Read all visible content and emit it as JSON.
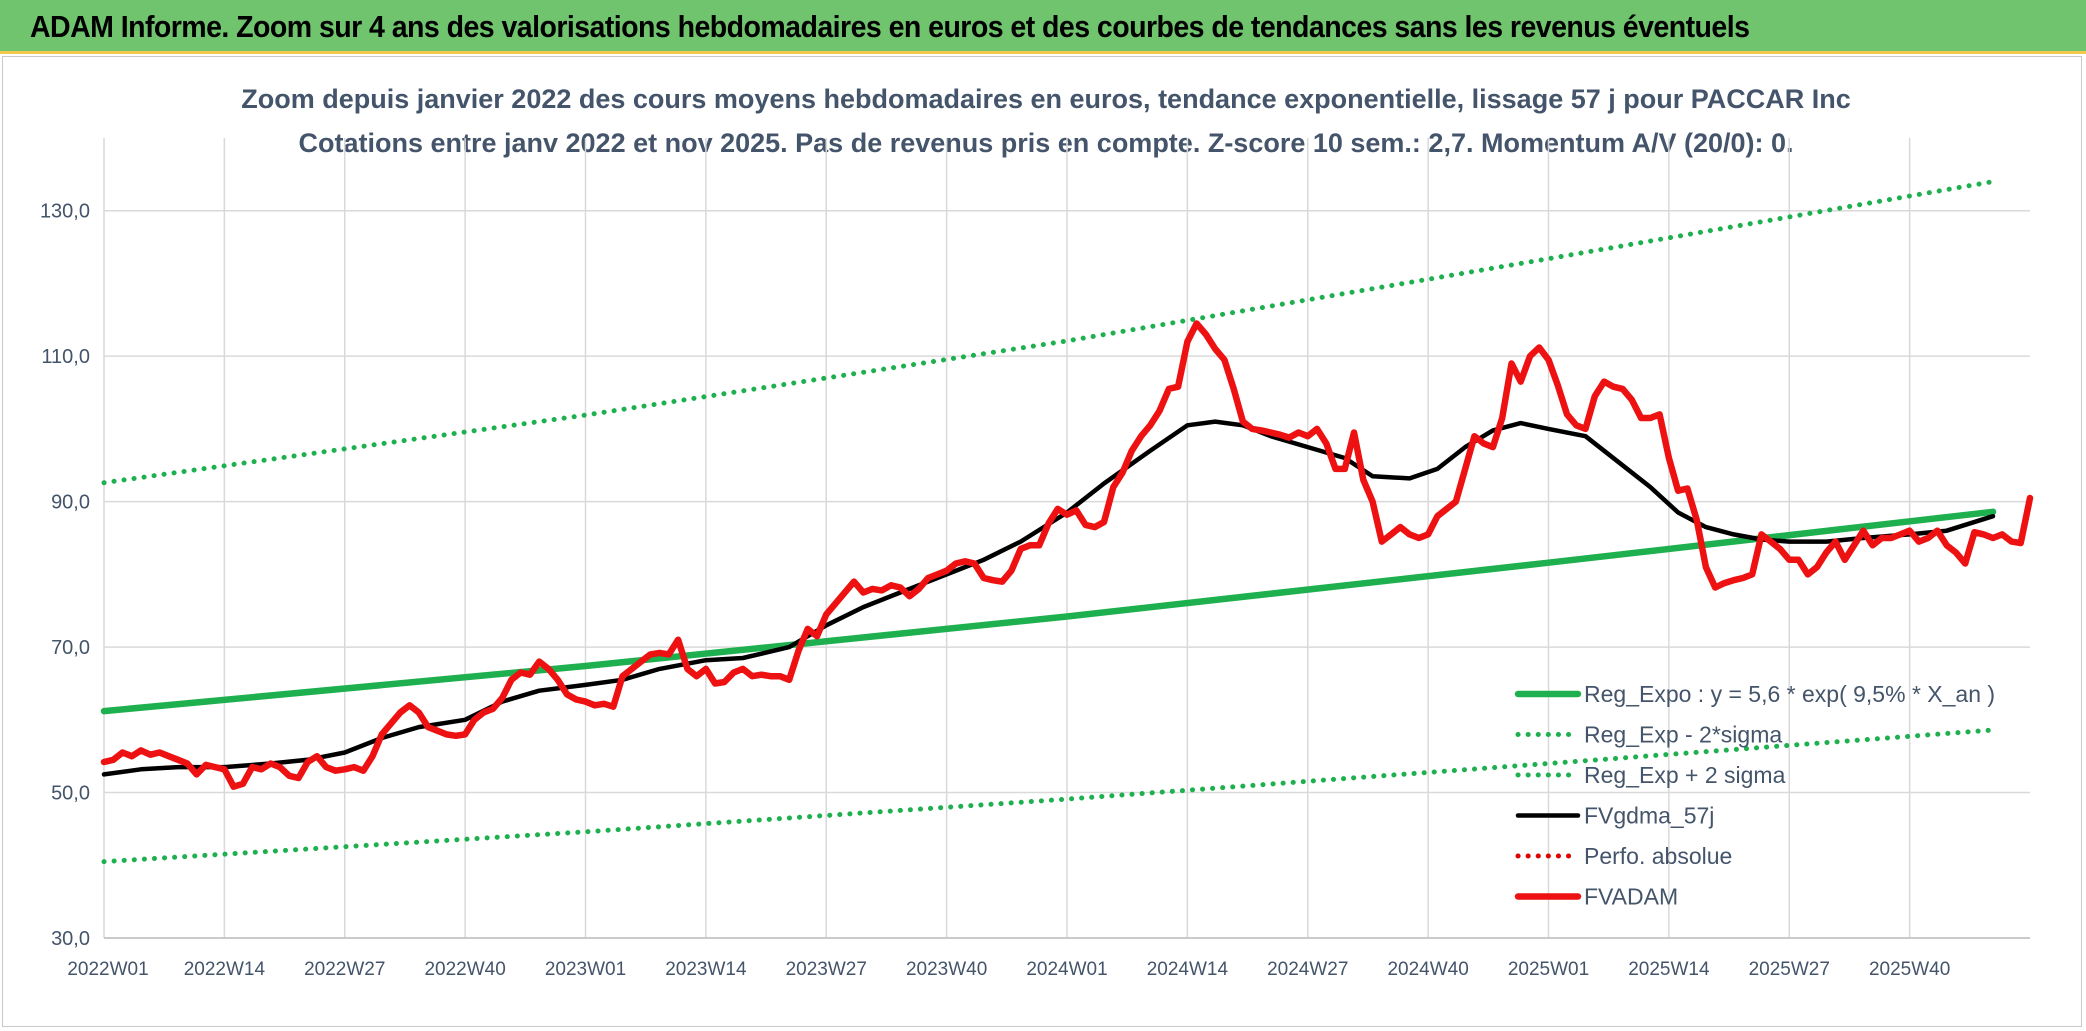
{
  "header": {
    "title": "ADAM Informe. Zoom sur 4 ans des valorisations hebdomadaires en euros et des courbes de tendances sans les revenus éventuels"
  },
  "chart_data": {
    "type": "line",
    "title": "Zoom depuis janvier 2022 des cours moyens hebdomadaires en euros, tendance exponentielle, lissage 57 j pour PACCAR Inc",
    "subtitle": "Cotations entre janv 2022 et nov 2025. Pas de revenus pris en compte. Z-score 10 sem.: 2,7. Momentum A/V (20/0): 0.",
    "xlabel": "",
    "ylabel": "",
    "ylim": [
      30,
      140
    ],
    "y_ticks": [
      30,
      50,
      70,
      90,
      110,
      130
    ],
    "y_tick_labels": [
      "30,0",
      "50,0",
      "70,0",
      "90,0",
      "110,0",
      "130,0"
    ],
    "x_ticks": [
      0,
      13,
      26,
      39,
      52,
      65,
      78,
      91,
      104,
      117,
      130,
      143,
      156,
      169,
      182,
      195
    ],
    "x_tick_labels": [
      "2022W01",
      "2022W14",
      "2022W27",
      "2022W40",
      "2023W01",
      "2023W14",
      "2023W27",
      "2023W40",
      "2024W01",
      "2024W14",
      "2024W27",
      "2024W40",
      "2025W01",
      "2025W14",
      "2025W27",
      "2025W40"
    ],
    "x_range": [
      0,
      204
    ],
    "grid": true,
    "legend_position": "bottom-right",
    "colors": {
      "reg_expo": "#1eb04f",
      "band": "#1eb04f",
      "gdma": "#000000",
      "perfo": "#e00000",
      "adam": "#ee1111",
      "grid": "#d9d9d9",
      "text": "#44546a"
    },
    "series": [
      {
        "name": "Reg_Expo : y = 5,6 * exp( 9,5% *  X_an )",
        "style": "solid-thick",
        "color": "#1eb04f",
        "points": [
          [
            0,
            61.2
          ],
          [
            52,
            67.4
          ],
          [
            104,
            74.2
          ],
          [
            156,
            81.6
          ],
          [
            204,
            88.6
          ]
        ]
      },
      {
        "name": "Reg_Exp - 2*sigma",
        "style": "dotted",
        "color": "#1eb04f",
        "points": [
          [
            0,
            40.5
          ],
          [
            52,
            44.6
          ],
          [
            104,
            49.1
          ],
          [
            156,
            54.0
          ],
          [
            204,
            58.6
          ]
        ]
      },
      {
        "name": "Reg_Exp + 2 sigma",
        "style": "dotted",
        "color": "#1eb04f",
        "points": [
          [
            0,
            92.6
          ],
          [
            52,
            101.9
          ],
          [
            104,
            112.1
          ],
          [
            156,
            123.4
          ],
          [
            204,
            134.0
          ]
        ]
      },
      {
        "name": "FVgdma_57j",
        "style": "solid",
        "color": "#000000",
        "points": [
          [
            0,
            52.5
          ],
          [
            4,
            53.2
          ],
          [
            8,
            53.5
          ],
          [
            13,
            53.5
          ],
          [
            18,
            54.0
          ],
          [
            22,
            54.5
          ],
          [
            26,
            55.5
          ],
          [
            30,
            57.5
          ],
          [
            34,
            59.0
          ],
          [
            39,
            60.0
          ],
          [
            43,
            62.5
          ],
          [
            47,
            64.0
          ],
          [
            52,
            64.8
          ],
          [
            56,
            65.5
          ],
          [
            60,
            67.0
          ],
          [
            65,
            68.2
          ],
          [
            69,
            68.5
          ],
          [
            74,
            70.0
          ],
          [
            78,
            73.0
          ],
          [
            82,
            75.5
          ],
          [
            86,
            77.5
          ],
          [
            91,
            80.0
          ],
          [
            95,
            82.0
          ],
          [
            99,
            84.5
          ],
          [
            104,
            88.5
          ],
          [
            108,
            92.5
          ],
          [
            113,
            97.0
          ],
          [
            117,
            100.5
          ],
          [
            120,
            101.0
          ],
          [
            123,
            100.5
          ],
          [
            126,
            99.0
          ],
          [
            130,
            97.5
          ],
          [
            134,
            96.0
          ],
          [
            137,
            93.5
          ],
          [
            141,
            93.2
          ],
          [
            144,
            94.5
          ],
          [
            147,
            97.5
          ],
          [
            150,
            99.8
          ],
          [
            153,
            100.8
          ],
          [
            156,
            100.0
          ],
          [
            160,
            99.0
          ],
          [
            164,
            95.0
          ],
          [
            167,
            92.0
          ],
          [
            170,
            88.5
          ],
          [
            173,
            86.5
          ],
          [
            176,
            85.5
          ],
          [
            179,
            84.8
          ],
          [
            182,
            84.5
          ],
          [
            186,
            84.5
          ],
          [
            190,
            85.0
          ],
          [
            195,
            85.5
          ],
          [
            199,
            86.0
          ],
          [
            204,
            88.0
          ]
        ]
      },
      {
        "name": "Perfo. absolue",
        "style": "dotted",
        "color": "#e00000",
        "points": []
      },
      {
        "name": "FVADAM",
        "style": "solid-thick",
        "color": "#ee1111",
        "points": [
          [
            0,
            54.2
          ],
          [
            1,
            54.5
          ],
          [
            2,
            55.5
          ],
          [
            3,
            55.0
          ],
          [
            4,
            55.8
          ],
          [
            5,
            55.2
          ],
          [
            6,
            55.5
          ],
          [
            7,
            55.0
          ],
          [
            8,
            54.5
          ],
          [
            9,
            54.0
          ],
          [
            10,
            52.5
          ],
          [
            11,
            53.8
          ],
          [
            12,
            53.5
          ],
          [
            13,
            53.2
          ],
          [
            14,
            50.8
          ],
          [
            15,
            51.2
          ],
          [
            16,
            53.5
          ],
          [
            17,
            53.2
          ],
          [
            18,
            54.0
          ],
          [
            19,
            53.5
          ],
          [
            20,
            52.3
          ],
          [
            21,
            52.0
          ],
          [
            22,
            54.2
          ],
          [
            23,
            55.0
          ],
          [
            24,
            53.5
          ],
          [
            25,
            53.0
          ],
          [
            26,
            53.2
          ],
          [
            27,
            53.5
          ],
          [
            28,
            53.0
          ],
          [
            29,
            55.0
          ],
          [
            30,
            58.0
          ],
          [
            31,
            59.5
          ],
          [
            32,
            61.0
          ],
          [
            33,
            62.0
          ],
          [
            34,
            61.0
          ],
          [
            35,
            59.0
          ],
          [
            36,
            58.5
          ],
          [
            37,
            58.0
          ],
          [
            38,
            57.8
          ],
          [
            39,
            58.0
          ],
          [
            40,
            60.0
          ],
          [
            41,
            61.0
          ],
          [
            42,
            61.5
          ],
          [
            43,
            63.0
          ],
          [
            44,
            65.5
          ],
          [
            45,
            66.5
          ],
          [
            46,
            66.2
          ],
          [
            47,
            68.0
          ],
          [
            48,
            67.0
          ],
          [
            49,
            65.5
          ],
          [
            50,
            63.5
          ],
          [
            51,
            62.8
          ],
          [
            52,
            62.5
          ],
          [
            53,
            62.0
          ],
          [
            54,
            62.2
          ],
          [
            55,
            61.8
          ],
          [
            56,
            66.0
          ],
          [
            57,
            67.0
          ],
          [
            58,
            68.0
          ],
          [
            59,
            69.0
          ],
          [
            60,
            69.2
          ],
          [
            61,
            69.0
          ],
          [
            62,
            71.0
          ],
          [
            63,
            67.0
          ],
          [
            64,
            66.0
          ],
          [
            65,
            67.0
          ],
          [
            66,
            65.0
          ],
          [
            67,
            65.2
          ],
          [
            68,
            66.5
          ],
          [
            69,
            67.0
          ],
          [
            70,
            66.0
          ],
          [
            71,
            66.2
          ],
          [
            72,
            66.0
          ],
          [
            73,
            66.0
          ],
          [
            74,
            65.5
          ],
          [
            75,
            69.5
          ],
          [
            76,
            72.5
          ],
          [
            77,
            71.5
          ],
          [
            78,
            74.5
          ],
          [
            79,
            76.0
          ],
          [
            80,
            77.5
          ],
          [
            81,
            79.0
          ],
          [
            82,
            77.5
          ],
          [
            83,
            78.0
          ],
          [
            84,
            77.8
          ],
          [
            85,
            78.5
          ],
          [
            86,
            78.2
          ],
          [
            87,
            77.0
          ],
          [
            88,
            78.0
          ],
          [
            89,
            79.5
          ],
          [
            90,
            80.0
          ],
          [
            91,
            80.5
          ],
          [
            92,
            81.5
          ],
          [
            93,
            81.8
          ],
          [
            94,
            81.5
          ],
          [
            95,
            79.5
          ],
          [
            96,
            79.2
          ],
          [
            97,
            79.0
          ],
          [
            98,
            80.5
          ],
          [
            99,
            83.5
          ],
          [
            100,
            84.0
          ],
          [
            101,
            84.0
          ],
          [
            102,
            87.0
          ],
          [
            103,
            89.0
          ],
          [
            104,
            88.2
          ],
          [
            105,
            88.8
          ],
          [
            106,
            86.8
          ],
          [
            107,
            86.5
          ],
          [
            108,
            87.2
          ],
          [
            109,
            92.0
          ],
          [
            110,
            94.0
          ],
          [
            111,
            97.0
          ],
          [
            112,
            99.0
          ],
          [
            113,
            100.5
          ],
          [
            114,
            102.5
          ],
          [
            115,
            105.5
          ],
          [
            116,
            105.8
          ],
          [
            117,
            112.0
          ],
          [
            118,
            114.5
          ],
          [
            119,
            113.0
          ],
          [
            120,
            111.0
          ],
          [
            121,
            109.5
          ],
          [
            122,
            105.5
          ],
          [
            123,
            101.0
          ],
          [
            124,
            100.0
          ],
          [
            125,
            99.8
          ],
          [
            126,
            99.5
          ],
          [
            127,
            99.2
          ],
          [
            128,
            98.8
          ],
          [
            129,
            99.5
          ],
          [
            130,
            99.0
          ],
          [
            131,
            100.0
          ],
          [
            132,
            98.0
          ],
          [
            133,
            94.5
          ],
          [
            134,
            94.5
          ],
          [
            135,
            99.5
          ],
          [
            136,
            93.0
          ],
          [
            137,
            90.0
          ],
          [
            138,
            84.5
          ],
          [
            139,
            85.5
          ],
          [
            140,
            86.5
          ],
          [
            141,
            85.5
          ],
          [
            142,
            85.0
          ],
          [
            143,
            85.5
          ],
          [
            144,
            88.0
          ],
          [
            145,
            89.0
          ],
          [
            146,
            90.0
          ],
          [
            147,
            94.5
          ],
          [
            148,
            99.0
          ],
          [
            149,
            98.0
          ],
          [
            150,
            97.5
          ],
          [
            151,
            101.5
          ],
          [
            152,
            109.0
          ],
          [
            153,
            106.5
          ],
          [
            154,
            110.0
          ],
          [
            155,
            111.2
          ],
          [
            156,
            109.5
          ],
          [
            157,
            106.0
          ],
          [
            158,
            102.0
          ],
          [
            159,
            100.5
          ],
          [
            160,
            100.0
          ],
          [
            161,
            104.5
          ],
          [
            162,
            106.5
          ],
          [
            163,
            105.8
          ],
          [
            164,
            105.5
          ],
          [
            165,
            104.0
          ],
          [
            166,
            101.5
          ],
          [
            167,
            101.5
          ],
          [
            168,
            102.0
          ],
          [
            169,
            96.0
          ],
          [
            170,
            91.5
          ],
          [
            171,
            91.8
          ],
          [
            172,
            87.5
          ],
          [
            173,
            81.0
          ],
          [
            174,
            78.2
          ],
          [
            175,
            78.8
          ],
          [
            176,
            79.2
          ],
          [
            177,
            79.5
          ],
          [
            178,
            80.0
          ],
          [
            179,
            85.5
          ],
          [
            180,
            84.5
          ],
          [
            181,
            83.5
          ],
          [
            182,
            82.0
          ],
          [
            183,
            82.0
          ],
          [
            184,
            80.0
          ],
          [
            185,
            81.0
          ],
          [
            186,
            83.0
          ],
          [
            187,
            84.5
          ],
          [
            188,
            82.0
          ],
          [
            189,
            84.0
          ],
          [
            190,
            86.0
          ],
          [
            191,
            84.0
          ],
          [
            192,
            85.0
          ],
          [
            193,
            85.0
          ],
          [
            194,
            85.5
          ],
          [
            195,
            86.0
          ],
          [
            196,
            84.5
          ],
          [
            197,
            85.0
          ],
          [
            198,
            86.0
          ],
          [
            199,
            84.0
          ],
          [
            200,
            83.0
          ],
          [
            201,
            81.5
          ],
          [
            202,
            85.8
          ],
          [
            203,
            85.5
          ],
          [
            204,
            85.0
          ],
          [
            205,
            85.5
          ],
          [
            206,
            84.5
          ],
          [
            207,
            84.3
          ],
          [
            208,
            90.5
          ]
        ]
      }
    ]
  }
}
